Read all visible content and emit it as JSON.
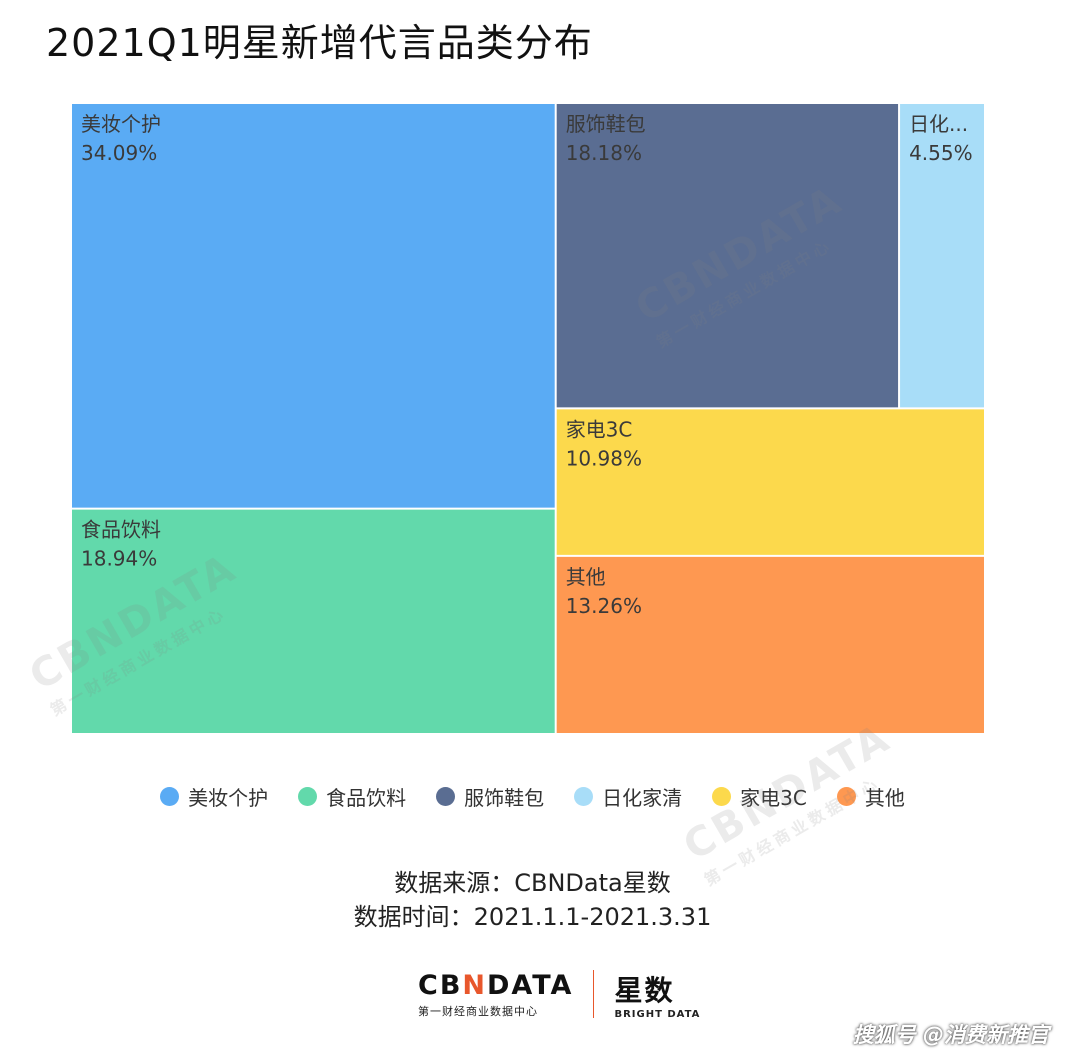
{
  "title": "2021Q1明星新增代言品类分布",
  "chart_data": {
    "type": "treemap",
    "title": "2021Q1明星新增代言品类分布",
    "items": [
      {
        "name": "美妆个护",
        "label": "美妆个护",
        "value": 34.09,
        "value_label": "34.09%",
        "color": "#5aabf4"
      },
      {
        "name": "食品饮料",
        "label": "食品饮料",
        "value": 18.94,
        "value_label": "18.94%",
        "color": "#62d9ab"
      },
      {
        "name": "服饰鞋包",
        "label": "服饰鞋包",
        "value": 18.18,
        "value_label": "18.18%",
        "color": "#5a6d92"
      },
      {
        "name": "日化家清",
        "label": "日化...",
        "value": 4.55,
        "value_label": "4.55%",
        "color": "#a8ddf8"
      },
      {
        "name": "家电3C",
        "label": "家电3C",
        "value": 10.98,
        "value_label": "10.98%",
        "color": "#fcd94c"
      },
      {
        "name": "其他",
        "label": "其他",
        "value": 13.26,
        "value_label": "13.26%",
        "color": "#fe9851"
      }
    ]
  },
  "legend": [
    {
      "label": "美妆个护",
      "color": "#5aabf4"
    },
    {
      "label": "食品饮料",
      "color": "#62d9ab"
    },
    {
      "label": "服饰鞋包",
      "color": "#5a6d92"
    },
    {
      "label": "日化家清",
      "color": "#a8ddf8"
    },
    {
      "label": "家电3C",
      "color": "#fcd94c"
    },
    {
      "label": "其他",
      "color": "#fe9851"
    }
  ],
  "source": {
    "line1": "数据来源：CBNData星数",
    "line2": "数据时间：2021.1.1-2021.3.31"
  },
  "logo": {
    "cbn_prefix": "CB",
    "cbn_accent": "N",
    "cbn_suffix": "DATA",
    "cbn_sub": "第一财经商业数据中心",
    "xs_main": "星数",
    "xs_sub": "BRIGHT DATA"
  },
  "watermark": {
    "main": "CBNDATA",
    "sub": "第一财经商业数据中心"
  },
  "corner_mark": "搜狐号 @消费新推官"
}
